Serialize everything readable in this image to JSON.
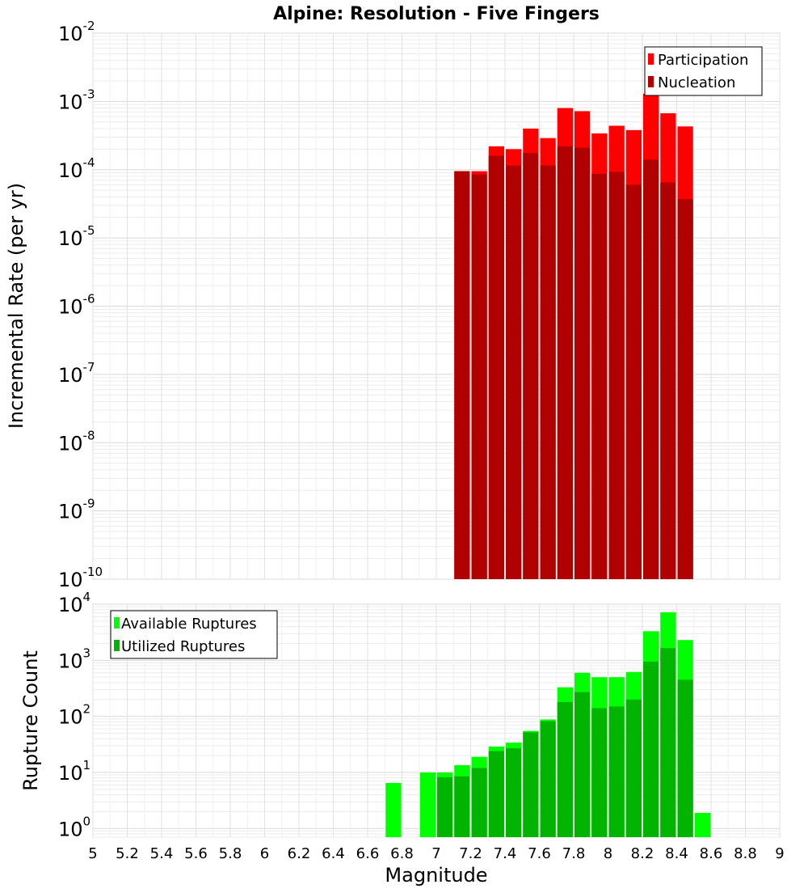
{
  "chart_data": [
    {
      "type": "bar",
      "title": "Alpine: Resolution - Five Fingers",
      "xlabel": "",
      "ylabel": "Incremental Rate (per yr)",
      "yscale": "log",
      "ylim": [
        1e-10,
        0.01
      ],
      "xlim": [
        5,
        9
      ],
      "grid": true,
      "legend_position": "top-right",
      "y_ticks": [
        {
          "base": "10",
          "exp": "-10"
        },
        {
          "base": "10",
          "exp": "-9"
        },
        {
          "base": "10",
          "exp": "-8"
        },
        {
          "base": "10",
          "exp": "-7"
        },
        {
          "base": "10",
          "exp": "-6"
        },
        {
          "base": "10",
          "exp": "-5"
        },
        {
          "base": "10",
          "exp": "-4"
        },
        {
          "base": "10",
          "exp": "-3"
        },
        {
          "base": "10",
          "exp": "-2"
        }
      ],
      "series": [
        {
          "name": "Participation",
          "color": "#ff0000",
          "x": [
            7.1,
            7.2,
            7.3,
            7.4,
            7.5,
            7.6,
            7.7,
            7.8,
            7.9,
            8.0,
            8.1,
            8.2,
            8.3,
            8.4
          ],
          "values": [
            9.5e-05,
            9.5e-05,
            0.00022,
            0.0002,
            0.0004,
            0.00029,
            0.0008,
            0.00072,
            0.00034,
            0.00044,
            0.00038,
            0.0013,
            0.00067,
            0.00043
          ]
        },
        {
          "name": "Nucleation",
          "color": "#b00000",
          "x": [
            7.1,
            7.2,
            7.3,
            7.4,
            7.5,
            7.6,
            7.7,
            7.8,
            7.9,
            8.0,
            8.1,
            8.2,
            8.3,
            8.4
          ],
          "values": [
            9.5e-05,
            8.5e-05,
            0.00016,
            0.000115,
            0.000175,
            0.000115,
            0.00022,
            0.00021,
            8.7e-05,
            9.3e-05,
            6e-05,
            0.00014,
            6.5e-05,
            3.7e-05
          ]
        }
      ]
    },
    {
      "type": "bar",
      "title": "",
      "xlabel": "Magnitude",
      "ylabel": "Rupture Count",
      "yscale": "log",
      "ylim": [
        0.7,
        10000
      ],
      "xlim": [
        5,
        9
      ],
      "grid": true,
      "legend_position": "top-left",
      "x_ticks": [
        "5",
        "5.2",
        "5.4",
        "5.6",
        "5.8",
        "6",
        "6.2",
        "6.4",
        "6.6",
        "6.8",
        "7",
        "7.2",
        "7.4",
        "7.6",
        "7.8",
        "8",
        "8.2",
        "8.4",
        "8.6",
        "8.8",
        "9"
      ],
      "y_ticks": [
        {
          "base": "10",
          "exp": "0"
        },
        {
          "base": "10",
          "exp": "1"
        },
        {
          "base": "10",
          "exp": "2"
        },
        {
          "base": "10",
          "exp": "3"
        },
        {
          "base": "10",
          "exp": "4"
        }
      ],
      "series": [
        {
          "name": "Available Ruptures",
          "color": "#00ff00",
          "x": [
            6.7,
            6.9,
            7.0,
            7.1,
            7.2,
            7.3,
            7.4,
            7.5,
            7.6,
            7.7,
            7.8,
            7.9,
            8.0,
            8.1,
            8.2,
            8.3,
            8.4,
            8.5
          ],
          "values": [
            6.5,
            10,
            10,
            13.5,
            19,
            29,
            34,
            55,
            88,
            330,
            600,
            500,
            500,
            620,
            3300,
            7200,
            2300,
            1.9
          ]
        },
        {
          "name": "Utilized Ruptures",
          "color": "#00b400",
          "x": [
            7.0,
            7.1,
            7.2,
            7.3,
            7.4,
            7.5,
            7.6,
            7.7,
            7.8,
            7.9,
            8.0,
            8.1,
            8.2,
            8.3,
            8.4
          ],
          "values": [
            8.2,
            8.5,
            12,
            24,
            27,
            52,
            82,
            180,
            270,
            140,
            150,
            200,
            950,
            1650,
            450
          ]
        }
      ]
    }
  ]
}
